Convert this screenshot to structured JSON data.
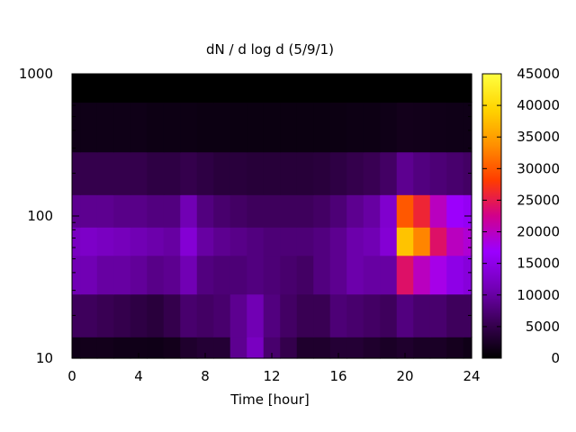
{
  "chart_data": {
    "type": "heatmap",
    "title": "dN / d log d (5/9/1)",
    "xlabel": "Time [hour]",
    "ylabel": "",
    "xlim": [
      0,
      24
    ],
    "ylim": [
      10,
      1000
    ],
    "y_scale": "log",
    "x_ticks": [
      0,
      4,
      8,
      12,
      16,
      20,
      24
    ],
    "y_ticks": [
      10,
      100,
      1000
    ],
    "colorbar": {
      "min": 0,
      "max": 45000,
      "ticks": [
        0,
        5000,
        10000,
        15000,
        20000,
        25000,
        30000,
        35000,
        40000,
        45000
      ],
      "palette": [
        "#000000",
        "#3a0055",
        "#7400b8",
        "#9b00ff",
        "#d1008c",
        "#ff3c00",
        "#ff9000",
        "#ffd400",
        "#ffff40"
      ]
    },
    "time_hours": [
      0,
      1,
      2,
      3,
      4,
      5,
      6,
      7,
      8,
      9,
      10,
      11,
      12,
      13,
      14,
      15,
      16,
      17,
      18,
      19,
      20,
      21,
      22,
      23,
      24
    ],
    "diameters": [
      10,
      20,
      40,
      70,
      100,
      200,
      400,
      1000
    ],
    "values": [
      [
        1500,
        1800,
        1800,
        1600,
        1600,
        1500,
        1800,
        3000,
        3500,
        3500,
        9000,
        12000,
        7000,
        5000,
        3000,
        3000,
        3500,
        3500,
        3000,
        2500,
        3000,
        2500,
        2500,
        2000,
        1500
      ],
      [
        6000,
        6000,
        5500,
        5000,
        4500,
        4000,
        5000,
        7000,
        6500,
        7000,
        9000,
        11000,
        8000,
        6500,
        5500,
        5500,
        7500,
        7000,
        6500,
        6000,
        8000,
        7000,
        7000,
        6000,
        6000
      ],
      [
        11000,
        11000,
        10000,
        10000,
        9500,
        8500,
        9000,
        11000,
        8000,
        7500,
        7500,
        8000,
        7500,
        7000,
        6500,
        8000,
        9000,
        10500,
        10000,
        10000,
        24000,
        20000,
        18000,
        15000,
        14000
      ],
      [
        12000,
        12500,
        12000,
        11500,
        11000,
        10500,
        10000,
        13500,
        10000,
        9000,
        8500,
        8000,
        7500,
        7500,
        7500,
        8000,
        9000,
        10500,
        11000,
        13500,
        38000,
        33000,
        24000,
        20000,
        19000
      ],
      [
        9000,
        9000,
        9000,
        8500,
        8500,
        8000,
        8000,
        11000,
        8000,
        7000,
        6500,
        6000,
        6000,
        6000,
        6000,
        6500,
        7500,
        9000,
        10000,
        13000,
        30000,
        26000,
        20000,
        17000,
        16000
      ],
      [
        5000,
        5000,
        5000,
        5000,
        5000,
        4500,
        4500,
        5000,
        4500,
        4000,
        4000,
        3800,
        3800,
        3800,
        3800,
        4000,
        4500,
        5000,
        5500,
        6500,
        9000,
        8000,
        7500,
        7000,
        6500
      ],
      [
        1500,
        1500,
        1500,
        1500,
        1500,
        1300,
        1300,
        1300,
        1200,
        1200,
        1100,
        1100,
        1100,
        1100,
        1100,
        1100,
        1200,
        1300,
        1300,
        1500,
        1800,
        1700,
        1600,
        1500,
        1500
      ],
      [
        0,
        0,
        0,
        0,
        0,
        0,
        0,
        0,
        0,
        0,
        0,
        0,
        0,
        0,
        0,
        0,
        0,
        0,
        0,
        0,
        0,
        0,
        0,
        0,
        0
      ]
    ]
  }
}
